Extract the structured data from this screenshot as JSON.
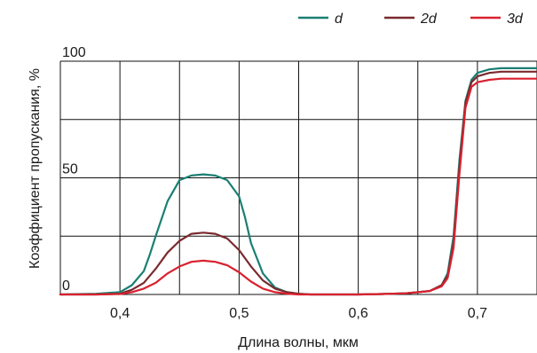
{
  "chart_data": {
    "type": "line",
    "xlabel": "Длина волны, мкм",
    "ylabel": "Коэффициент пропускания, %",
    "xlim": [
      0.35,
      0.75
    ],
    "ylim": [
      0,
      100
    ],
    "x_ticks": [
      {
        "value": 0.4,
        "label": "0,4"
      },
      {
        "value": 0.5,
        "label": "0,5"
      },
      {
        "value": 0.6,
        "label": "0,6"
      },
      {
        "value": 0.7,
        "label": "0,7"
      }
    ],
    "y_ticks": [
      {
        "value": 0,
        "label": "0"
      },
      {
        "value": 50,
        "label": "50"
      },
      {
        "value": 100,
        "label": "100"
      }
    ],
    "grid": true,
    "legend_position": "top-right",
    "series": [
      {
        "name_prefix": "",
        "name_italic": "d",
        "color": "#1a7f73",
        "x": [
          0.35,
          0.38,
          0.4,
          0.41,
          0.42,
          0.425,
          0.43,
          0.44,
          0.45,
          0.46,
          0.47,
          0.48,
          0.49,
          0.5,
          0.505,
          0.51,
          0.52,
          0.53,
          0.54,
          0.55,
          0.56,
          0.58,
          0.6,
          0.62,
          0.64,
          0.66,
          0.67,
          0.675,
          0.68,
          0.685,
          0.69,
          0.695,
          0.7,
          0.71,
          0.72,
          0.73,
          0.75
        ],
        "y": [
          0,
          0.3,
          1,
          4,
          10,
          17,
          25,
          40,
          49,
          51,
          51.5,
          51,
          49,
          42,
          33,
          22,
          9,
          3,
          1,
          0.3,
          0,
          0,
          0,
          0.2,
          0.5,
          1.5,
          4,
          9,
          25,
          58,
          83,
          92,
          95,
          96.5,
          97,
          97,
          97
        ]
      },
      {
        "name_prefix": "2",
        "name_italic": "d",
        "color": "#7a2a2e",
        "x": [
          0.35,
          0.38,
          0.4,
          0.41,
          0.42,
          0.43,
          0.44,
          0.45,
          0.46,
          0.47,
          0.48,
          0.49,
          0.5,
          0.51,
          0.52,
          0.53,
          0.54,
          0.55,
          0.56,
          0.58,
          0.6,
          0.62,
          0.64,
          0.66,
          0.67,
          0.675,
          0.68,
          0.685,
          0.69,
          0.695,
          0.7,
          0.71,
          0.72,
          0.73,
          0.75
        ],
        "y": [
          0,
          0,
          0.3,
          2,
          5,
          11,
          18,
          23,
          26,
          26.5,
          26,
          24,
          19,
          12,
          6,
          2.5,
          1,
          0.3,
          0,
          0,
          0,
          0.2,
          0.5,
          1.5,
          4,
          8,
          22,
          55,
          82,
          91,
          93.5,
          95,
          95.5,
          95.5,
          95.5
        ]
      },
      {
        "name_prefix": "3",
        "name_italic": "d",
        "color": "#d9212e",
        "x": [
          0.35,
          0.38,
          0.4,
          0.41,
          0.42,
          0.43,
          0.44,
          0.45,
          0.46,
          0.47,
          0.48,
          0.49,
          0.5,
          0.51,
          0.52,
          0.53,
          0.54,
          0.55,
          0.56,
          0.58,
          0.6,
          0.62,
          0.64,
          0.66,
          0.67,
          0.675,
          0.68,
          0.685,
          0.69,
          0.695,
          0.7,
          0.71,
          0.72,
          0.73,
          0.75
        ],
        "y": [
          0,
          0,
          0.2,
          1,
          2.5,
          5,
          9,
          12,
          14,
          14.5,
          14,
          12.5,
          9.5,
          5.5,
          2.5,
          1,
          0.3,
          0,
          0,
          0,
          0,
          0.2,
          0.5,
          1.5,
          3.5,
          7,
          20,
          52,
          80,
          89,
          91,
          92,
          92.5,
          92.5,
          92.5
        ]
      }
    ]
  }
}
